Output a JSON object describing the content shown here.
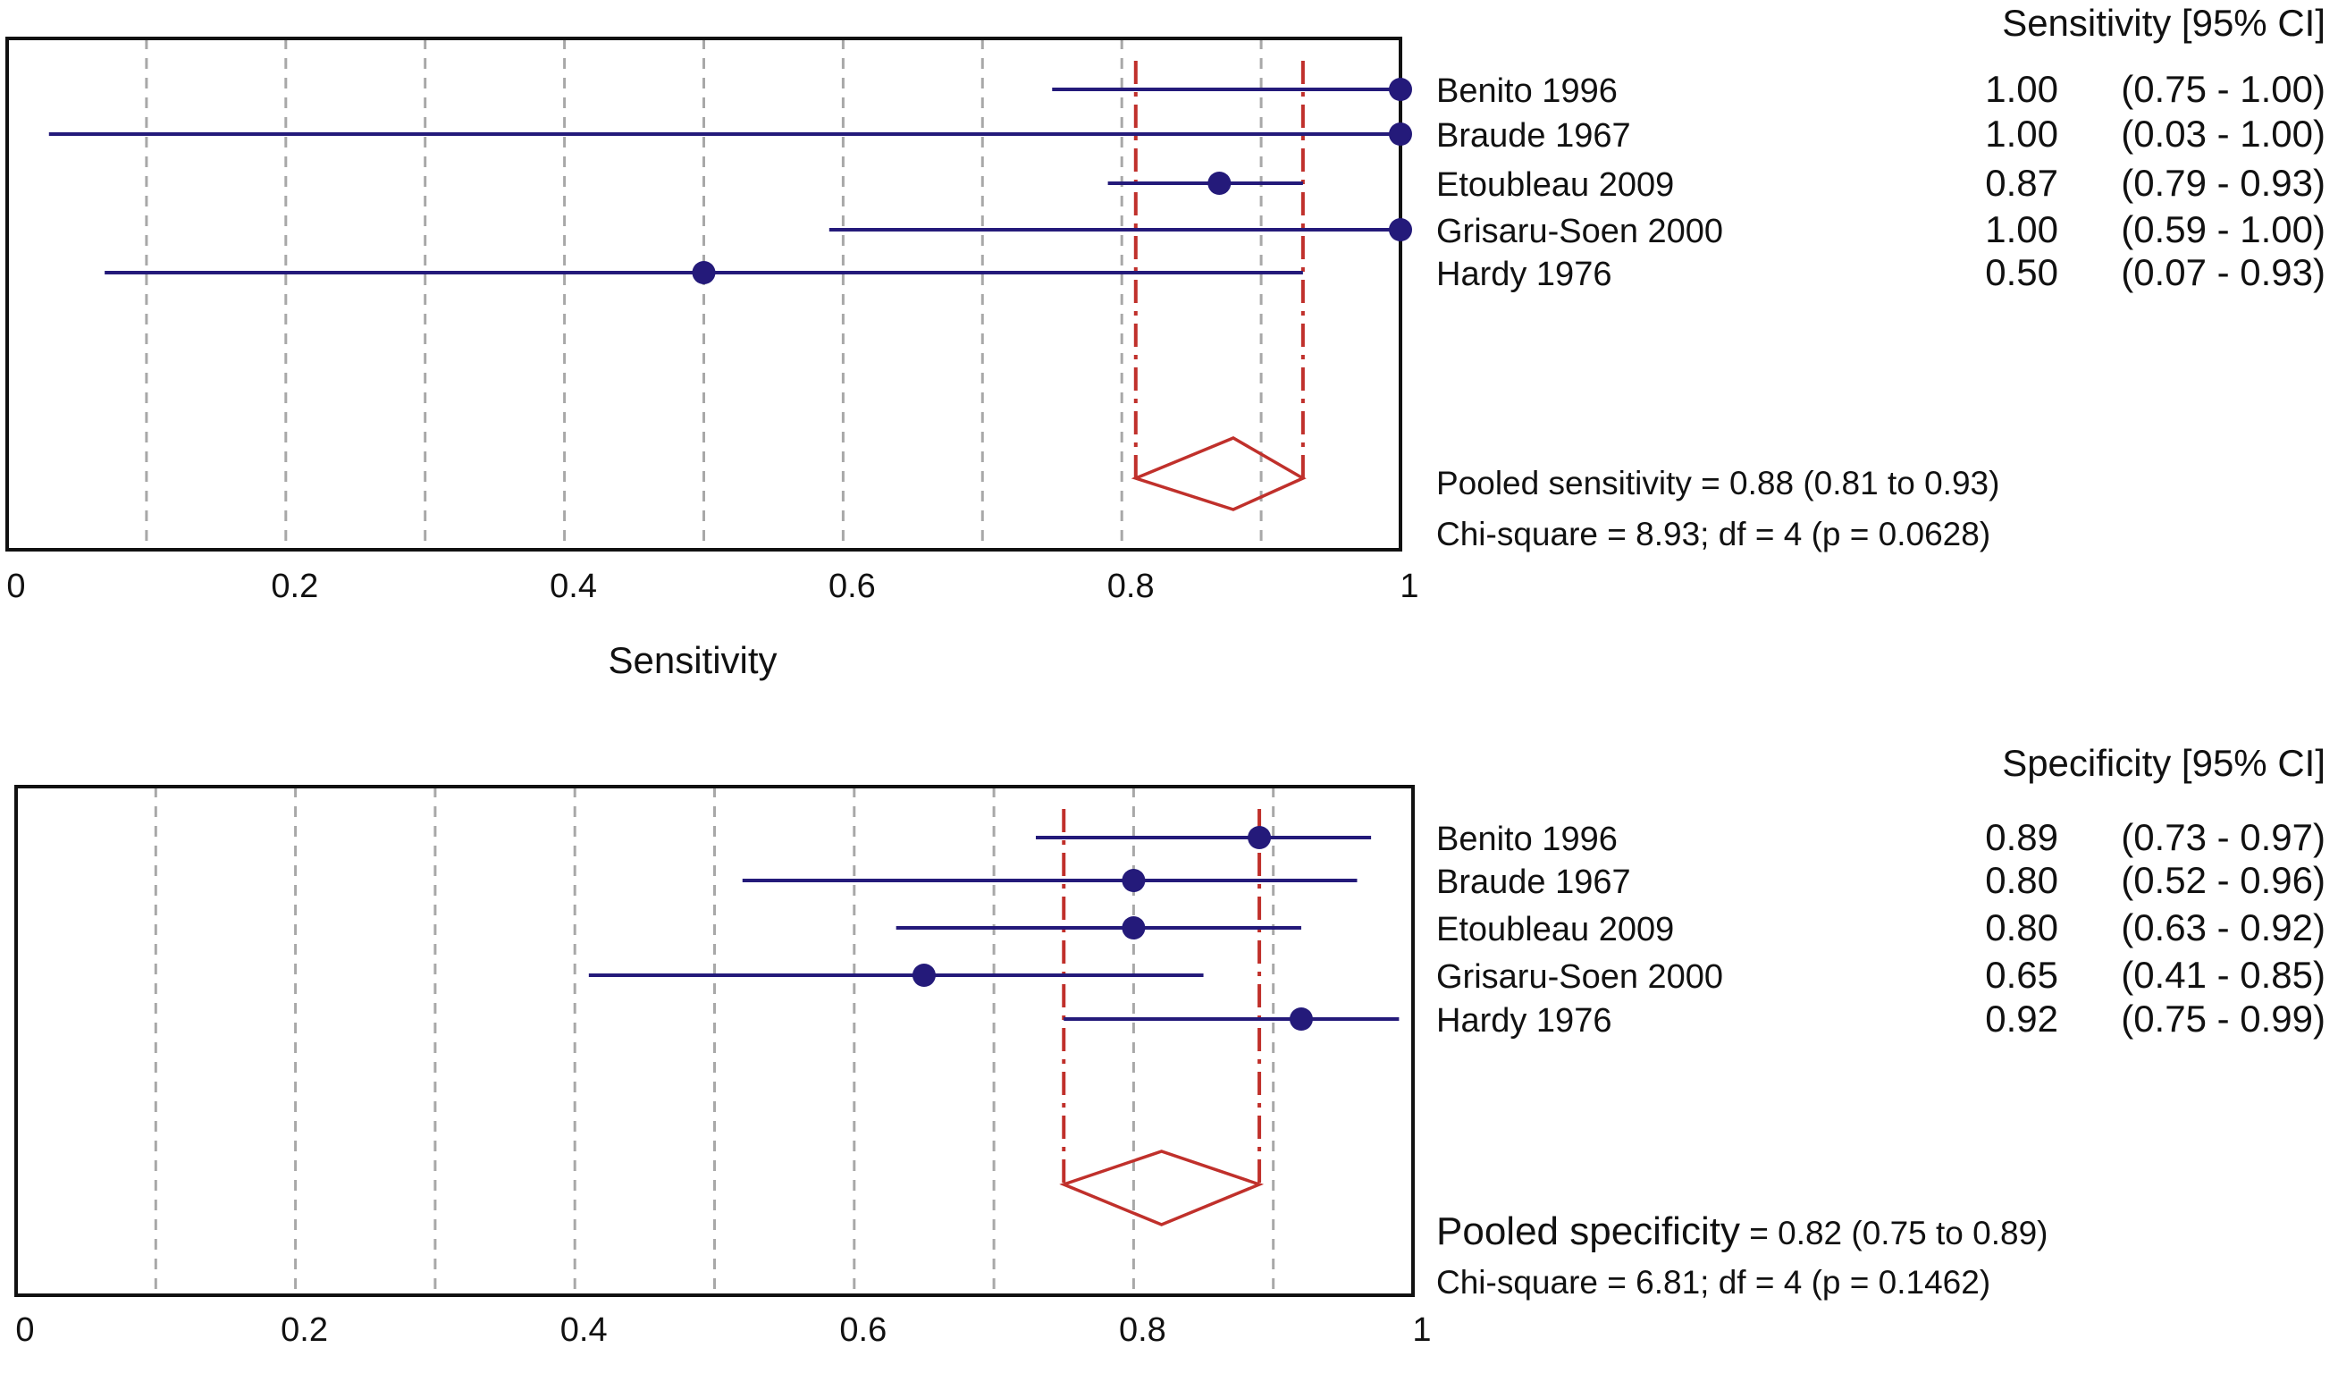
{
  "chart_data": [
    {
      "type": "forest",
      "id": "sens",
      "column_header": "Sensitivity [95% CI]",
      "xlabel": "Sensitivity",
      "xlim": [
        0,
        1
      ],
      "xticks": [
        "0",
        "0.2",
        "0.4",
        "0.6",
        "0.8",
        "1"
      ],
      "studies": [
        {
          "name": "Benito 1996",
          "value": 1.0,
          "lo": 0.75,
          "hi": 1.0,
          "value_text": "1.00",
          "ci_text": "(0.75 - 1.00)"
        },
        {
          "name": "Braude 1967",
          "value": 1.0,
          "lo": 0.03,
          "hi": 1.0,
          "value_text": "1.00",
          "ci_text": "(0.03 - 1.00)"
        },
        {
          "name": "Etoubleau 2009",
          "value": 0.87,
          "lo": 0.79,
          "hi": 0.93,
          "value_text": "0.87",
          "ci_text": "(0.79 - 0.93)"
        },
        {
          "name": "Grisaru-Soen 2000",
          "value": 1.0,
          "lo": 0.59,
          "hi": 1.0,
          "value_text": "1.00",
          "ci_text": "(0.59 - 1.00)"
        },
        {
          "name": "Hardy 1976",
          "value": 0.5,
          "lo": 0.07,
          "hi": 0.93,
          "value_text": "0.50",
          "ci_text": "(0.07 - 0.93)"
        }
      ],
      "pooled": {
        "value": 0.88,
        "lo": 0.81,
        "hi": 0.93
      },
      "pooled_label": "Pooled sensitivity",
      "pooled_text": " = 0.88 (0.81 to 0.93)",
      "chi_text": "Chi-square = 8.93; df = 4 (p = 0.0628)",
      "colors": {
        "study": "#241a7a",
        "pooled": "#c0302b",
        "grid": "#a8a8a8",
        "frame": "#111111"
      }
    },
    {
      "type": "forest",
      "id": "spec",
      "column_header": "Specificity [95% CI]",
      "xlabel": "",
      "xlim": [
        0,
        1
      ],
      "xticks": [
        "0",
        "0.2",
        "0.4",
        "0.6",
        "0.8",
        "1"
      ],
      "studies": [
        {
          "name": "Benito 1996",
          "value": 0.89,
          "lo": 0.73,
          "hi": 0.97,
          "value_text": "0.89",
          "ci_text": "(0.73 - 0.97)"
        },
        {
          "name": "Braude 1967",
          "value": 0.8,
          "lo": 0.52,
          "hi": 0.96,
          "value_text": "0.80",
          "ci_text": "(0.52 - 0.96)"
        },
        {
          "name": "Etoubleau 2009",
          "value": 0.8,
          "lo": 0.63,
          "hi": 0.92,
          "value_text": "0.80",
          "ci_text": "(0.63 - 0.92)"
        },
        {
          "name": "Grisaru-Soen 2000",
          "value": 0.65,
          "lo": 0.41,
          "hi": 0.85,
          "value_text": "0.65",
          "ci_text": "(0.41 - 0.85)"
        },
        {
          "name": "Hardy 1976",
          "value": 0.92,
          "lo": 0.75,
          "hi": 0.99,
          "value_text": "0.92",
          "ci_text": "(0.75 - 0.99)"
        }
      ],
      "pooled": {
        "value": 0.82,
        "lo": 0.75,
        "hi": 0.89
      },
      "pooled_label": "Pooled specificity",
      "pooled_text": " = 0.82 (0.75 to 0.89)",
      "chi_text": "Chi-square = 6.81; df = 4 (p = 0.1462)",
      "colors": {
        "study": "#241a7a",
        "pooled": "#c0302b",
        "grid": "#a8a8a8",
        "frame": "#111111"
      }
    }
  ]
}
